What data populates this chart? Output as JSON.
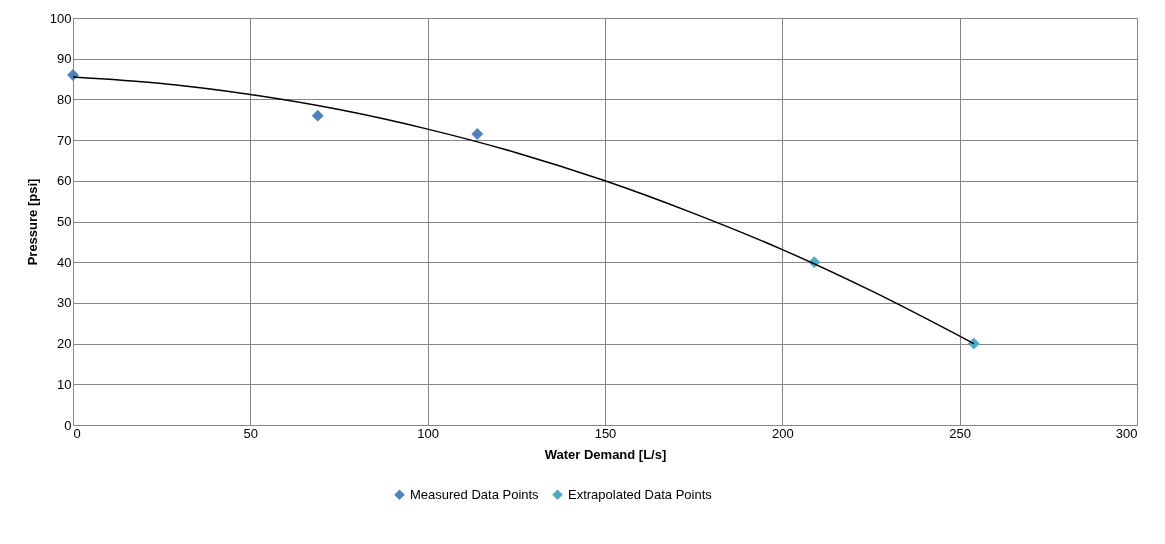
{
  "chart_data": {
    "type": "scatter",
    "xlabel": "Water Demand [L/s]",
    "ylabel": "Pressure [psi]",
    "xlim": [
      0,
      300
    ],
    "xticks": [
      0,
      50,
      100,
      150,
      200,
      250,
      300
    ],
    "ylim": [
      0,
      100
    ],
    "yticks": [
      0,
      10,
      20,
      30,
      40,
      50,
      60,
      70,
      80,
      90,
      100
    ],
    "grid": true,
    "legend": "bottom",
    "marker": "diamond",
    "series": [
      {
        "name": "Measured Data Points",
        "color": "#4f81bd",
        "x": [
          0,
          69,
          114
        ],
        "values": [
          86,
          76,
          71.5
        ]
      },
      {
        "name": "Extrapolated Data Points",
        "color": "#4bacc6",
        "x": [
          209,
          254
        ],
        "values": [
          40,
          20
        ]
      },
      {
        "type": "line",
        "marker": "none",
        "color": "#000000",
        "x": [
          0,
          25,
          50,
          75,
          100,
          125,
          150,
          175,
          200,
          225,
          254
        ],
        "values": [
          85.5,
          83.9,
          81.2,
          77.5,
          72.7,
          66.9,
          60.0,
          52.0,
          43.1,
          33.0,
          20.0
        ]
      }
    ]
  }
}
